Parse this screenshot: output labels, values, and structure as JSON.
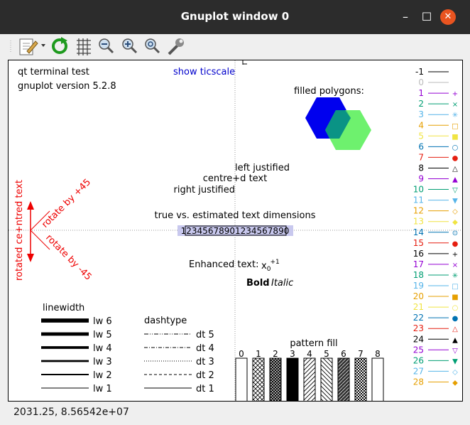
{
  "window": {
    "title": "Gnuplot window 0",
    "minimize": "–",
    "maximize": "☐",
    "close": "✕"
  },
  "toolbar": {
    "items": [
      "export-icon",
      "replot-icon",
      "grid-icon",
      "zoom-out-icon",
      "zoom-in-icon",
      "zoom-fit-icon",
      "settings-icon"
    ]
  },
  "plot": {
    "header_line1": "qt  terminal test",
    "header_line2": "gnuplot version 5.2.8",
    "show_ticscale": "show ticscale",
    "filled_polygons": "filled polygons:",
    "left_justified": "left justified",
    "centre_text": "centre+d text",
    "right_justified": "right justified",
    "true_vs_est": "true vs. estimated text dimensions",
    "digits": "12345678901234567890",
    "enhanced_label": "Enhanced text:",
    "bold": "Bold",
    "italic": "Italic",
    "rotated_centered": "rotated ce+ntred text",
    "rotate_plus": "rotate by +45",
    "rotate_minus": "rotate by -45",
    "linewidth_title": "linewidth",
    "linewidths": [
      "lw 6",
      "lw 5",
      "lw 4",
      "lw 3",
      "lw 2",
      "lw 1"
    ],
    "dashtype_title": "dashtype",
    "dashtypes": [
      "dt 5",
      "dt 4",
      "dt 3",
      "dt 2",
      "dt 1"
    ],
    "pattern_title": "pattern fill",
    "patterns": [
      "0",
      "1",
      "2",
      "3",
      "4",
      "5",
      "6",
      "7",
      "8"
    ],
    "polygon_colors": [
      "#0000ee",
      "#55ee55"
    ],
    "legend": [
      {
        "label": "-1",
        "color": "#000000",
        "marker": "none"
      },
      {
        "label": "0",
        "color": "#bbbbbb",
        "marker": "none"
      },
      {
        "label": "1",
        "color": "#9400d3",
        "marker": "+"
      },
      {
        "label": "2",
        "color": "#009e73",
        "marker": "×"
      },
      {
        "label": "3",
        "color": "#56b4e9",
        "marker": "✳"
      },
      {
        "label": "4",
        "color": "#e69f00",
        "marker": "□"
      },
      {
        "label": "5",
        "color": "#f0e442",
        "marker": "■"
      },
      {
        "label": "6",
        "color": "#0072b2",
        "marker": "○"
      },
      {
        "label": "7",
        "color": "#e51e10",
        "marker": "●"
      },
      {
        "label": "8",
        "color": "#000000",
        "marker": "△"
      },
      {
        "label": "9",
        "color": "#9400d3",
        "marker": "▲"
      },
      {
        "label": "10",
        "color": "#009e73",
        "marker": "▽"
      },
      {
        "label": "11",
        "color": "#56b4e9",
        "marker": "▼"
      },
      {
        "label": "12",
        "color": "#e69f00",
        "marker": "◇"
      },
      {
        "label": "13",
        "color": "#f0e442",
        "marker": "◆"
      },
      {
        "label": "14",
        "color": "#0072b2",
        "marker": "⊙"
      },
      {
        "label": "15",
        "color": "#e51e10",
        "marker": "●"
      },
      {
        "label": "16",
        "color": "#000000",
        "marker": "+"
      },
      {
        "label": "17",
        "color": "#9400d3",
        "marker": "×"
      },
      {
        "label": "18",
        "color": "#009e73",
        "marker": "✳"
      },
      {
        "label": "19",
        "color": "#56b4e9",
        "marker": "□"
      },
      {
        "label": "20",
        "color": "#e69f00",
        "marker": "■"
      },
      {
        "label": "21",
        "color": "#f0e442",
        "marker": "○"
      },
      {
        "label": "22",
        "color": "#0072b2",
        "marker": "●"
      },
      {
        "label": "23",
        "color": "#e51e10",
        "marker": "△"
      },
      {
        "label": "24",
        "color": "#000000",
        "marker": "▲"
      },
      {
        "label": "25",
        "color": "#9400d3",
        "marker": "▽"
      },
      {
        "label": "26",
        "color": "#009e73",
        "marker": "▼"
      },
      {
        "label": "27",
        "color": "#56b4e9",
        "marker": "◇"
      },
      {
        "label": "28",
        "color": "#e69f00",
        "marker": "◆"
      }
    ]
  },
  "status": {
    "text": "2031.25,  8.56542e+07"
  }
}
